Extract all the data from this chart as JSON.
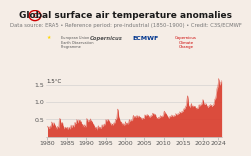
{
  "title": "Global surface air temperature anomalies",
  "subtitle": "Data source: ERA5 • Reference period: pre-industrial (1850–1900) • Credit: C3S/ECMWF",
  "bg_color": "#f5ede6",
  "bar_color": "#d93a2b",
  "ylim": [
    0.0,
    2.0
  ],
  "yticks": [
    0.5,
    1.0,
    1.5
  ],
  "ytick_labels": [
    "0.5",
    "1.0",
    "1.5"
  ],
  "y_line_15": 1.5,
  "y_line_15_label": "1.5°C",
  "xlim": [
    1979.6,
    2025.0
  ],
  "xticks": [
    1980,
    1985,
    1990,
    1995,
    2000,
    2005,
    2010,
    2015,
    2020,
    2024
  ],
  "title_fontsize": 6.5,
  "subtitle_fontsize": 3.8,
  "tick_fontsize": 4.5,
  "monthly_values": [
    0.27,
    0.31,
    0.28,
    0.23,
    0.26,
    0.25,
    0.25,
    0.29,
    0.27,
    0.24,
    0.32,
    0.27,
    0.38,
    0.43,
    0.41,
    0.38,
    0.35,
    0.33,
    0.37,
    0.38,
    0.41,
    0.39,
    0.36,
    0.35,
    0.25,
    0.31,
    0.28,
    0.24,
    0.22,
    0.25,
    0.28,
    0.3,
    0.29,
    0.27,
    0.27,
    0.25,
    0.45,
    0.51,
    0.53,
    0.52,
    0.47,
    0.42,
    0.38,
    0.37,
    0.39,
    0.41,
    0.38,
    0.41,
    0.26,
    0.32,
    0.27,
    0.23,
    0.24,
    0.26,
    0.27,
    0.28,
    0.28,
    0.24,
    0.26,
    0.25,
    0.22,
    0.28,
    0.26,
    0.22,
    0.23,
    0.24,
    0.26,
    0.28,
    0.25,
    0.22,
    0.26,
    0.24,
    0.28,
    0.34,
    0.31,
    0.27,
    0.28,
    0.3,
    0.32,
    0.34,
    0.31,
    0.28,
    0.32,
    0.3,
    0.35,
    0.42,
    0.4,
    0.38,
    0.38,
    0.42,
    0.47,
    0.5,
    0.47,
    0.44,
    0.4,
    0.42,
    0.45,
    0.49,
    0.48,
    0.45,
    0.44,
    0.48,
    0.46,
    0.44,
    0.44,
    0.38,
    0.36,
    0.35,
    0.3,
    0.37,
    0.33,
    0.29,
    0.29,
    0.31,
    0.33,
    0.35,
    0.31,
    0.28,
    0.3,
    0.28,
    0.45,
    0.51,
    0.53,
    0.48,
    0.44,
    0.43,
    0.45,
    0.47,
    0.46,
    0.44,
    0.48,
    0.47,
    0.45,
    0.52,
    0.49,
    0.45,
    0.42,
    0.45,
    0.43,
    0.43,
    0.39,
    0.35,
    0.36,
    0.37,
    0.27,
    0.32,
    0.3,
    0.27,
    0.22,
    0.24,
    0.26,
    0.28,
    0.24,
    0.19,
    0.24,
    0.25,
    0.28,
    0.32,
    0.31,
    0.29,
    0.25,
    0.24,
    0.26,
    0.28,
    0.26,
    0.24,
    0.27,
    0.26,
    0.3,
    0.35,
    0.33,
    0.3,
    0.31,
    0.33,
    0.34,
    0.36,
    0.35,
    0.34,
    0.38,
    0.39,
    0.45,
    0.5,
    0.48,
    0.45,
    0.46,
    0.47,
    0.48,
    0.5,
    0.5,
    0.48,
    0.48,
    0.44,
    0.37,
    0.43,
    0.4,
    0.36,
    0.34,
    0.35,
    0.37,
    0.38,
    0.36,
    0.33,
    0.36,
    0.33,
    0.36,
    0.4,
    0.39,
    0.37,
    0.4,
    0.43,
    0.48,
    0.51,
    0.49,
    0.5,
    0.53,
    0.58,
    0.72,
    0.8,
    0.79,
    0.72,
    0.63,
    0.56,
    0.54,
    0.52,
    0.48,
    0.44,
    0.44,
    0.42,
    0.37,
    0.43,
    0.4,
    0.36,
    0.34,
    0.35,
    0.37,
    0.38,
    0.35,
    0.32,
    0.35,
    0.34,
    0.38,
    0.44,
    0.41,
    0.38,
    0.36,
    0.37,
    0.39,
    0.4,
    0.38,
    0.36,
    0.4,
    0.38,
    0.45,
    0.5,
    0.48,
    0.45,
    0.45,
    0.46,
    0.47,
    0.49,
    0.49,
    0.47,
    0.47,
    0.46,
    0.54,
    0.6,
    0.62,
    0.59,
    0.57,
    0.56,
    0.57,
    0.59,
    0.58,
    0.56,
    0.58,
    0.57,
    0.57,
    0.62,
    0.6,
    0.57,
    0.57,
    0.58,
    0.58,
    0.6,
    0.6,
    0.57,
    0.57,
    0.56,
    0.51,
    0.56,
    0.54,
    0.51,
    0.51,
    0.52,
    0.52,
    0.54,
    0.54,
    0.52,
    0.53,
    0.52,
    0.58,
    0.63,
    0.63,
    0.62,
    0.61,
    0.6,
    0.61,
    0.63,
    0.63,
    0.62,
    0.64,
    0.63,
    0.56,
    0.61,
    0.59,
    0.57,
    0.56,
    0.57,
    0.58,
    0.6,
    0.6,
    0.59,
    0.61,
    0.61,
    0.63,
    0.68,
    0.68,
    0.67,
    0.65,
    0.63,
    0.64,
    0.66,
    0.65,
    0.63,
    0.64,
    0.63,
    0.53,
    0.57,
    0.55,
    0.54,
    0.53,
    0.52,
    0.53,
    0.56,
    0.55,
    0.53,
    0.55,
    0.55,
    0.56,
    0.61,
    0.6,
    0.59,
    0.58,
    0.57,
    0.58,
    0.6,
    0.6,
    0.59,
    0.61,
    0.63,
    0.68,
    0.73,
    0.74,
    0.72,
    0.69,
    0.67,
    0.67,
    0.67,
    0.65,
    0.62,
    0.62,
    0.6,
    0.54,
    0.58,
    0.56,
    0.54,
    0.54,
    0.55,
    0.57,
    0.59,
    0.59,
    0.58,
    0.6,
    0.6,
    0.59,
    0.63,
    0.61,
    0.6,
    0.59,
    0.58,
    0.59,
    0.61,
    0.61,
    0.6,
    0.61,
    0.61,
    0.62,
    0.67,
    0.66,
    0.64,
    0.64,
    0.63,
    0.64,
    0.66,
    0.66,
    0.65,
    0.67,
    0.67,
    0.67,
    0.72,
    0.71,
    0.7,
    0.7,
    0.69,
    0.7,
    0.72,
    0.72,
    0.71,
    0.73,
    0.73,
    0.75,
    0.8,
    0.8,
    0.8,
    0.8,
    0.81,
    0.84,
    0.87,
    0.87,
    0.9,
    0.93,
    0.99,
    1.1,
    1.17,
    1.18,
    1.1,
    0.99,
    0.91,
    0.88,
    0.88,
    0.86,
    0.84,
    0.87,
    0.88,
    0.91,
    0.96,
    0.94,
    0.89,
    0.87,
    0.86,
    0.87,
    0.89,
    0.88,
    0.87,
    0.88,
    0.88,
    0.83,
    0.88,
    0.86,
    0.83,
    0.82,
    0.8,
    0.81,
    0.83,
    0.83,
    0.82,
    0.83,
    0.83,
    0.87,
    0.92,
    0.92,
    0.91,
    0.89,
    0.89,
    0.91,
    0.93,
    0.93,
    0.93,
    0.96,
    0.99,
    1.03,
    1.07,
    1.06,
    1.02,
    0.97,
    0.93,
    0.93,
    0.93,
    0.93,
    0.93,
    0.96,
    0.95,
    0.88,
    0.91,
    0.89,
    0.86,
    0.85,
    0.85,
    0.86,
    0.88,
    0.89,
    0.89,
    0.91,
    0.91,
    0.91,
    0.93,
    0.92,
    0.9,
    0.88,
    0.87,
    0.88,
    0.9,
    0.9,
    0.91,
    0.92,
    0.93,
    0.98,
    1.05,
    1.08,
    1.1,
    1.1,
    1.12,
    1.19,
    1.27,
    1.34,
    1.41,
    1.4,
    1.43,
    1.52,
    1.6,
    1.68,
    1.62,
    1.52,
    1.5,
    1.48,
    1.51,
    1.54,
    1.58,
    1.52,
    1.62
  ]
}
